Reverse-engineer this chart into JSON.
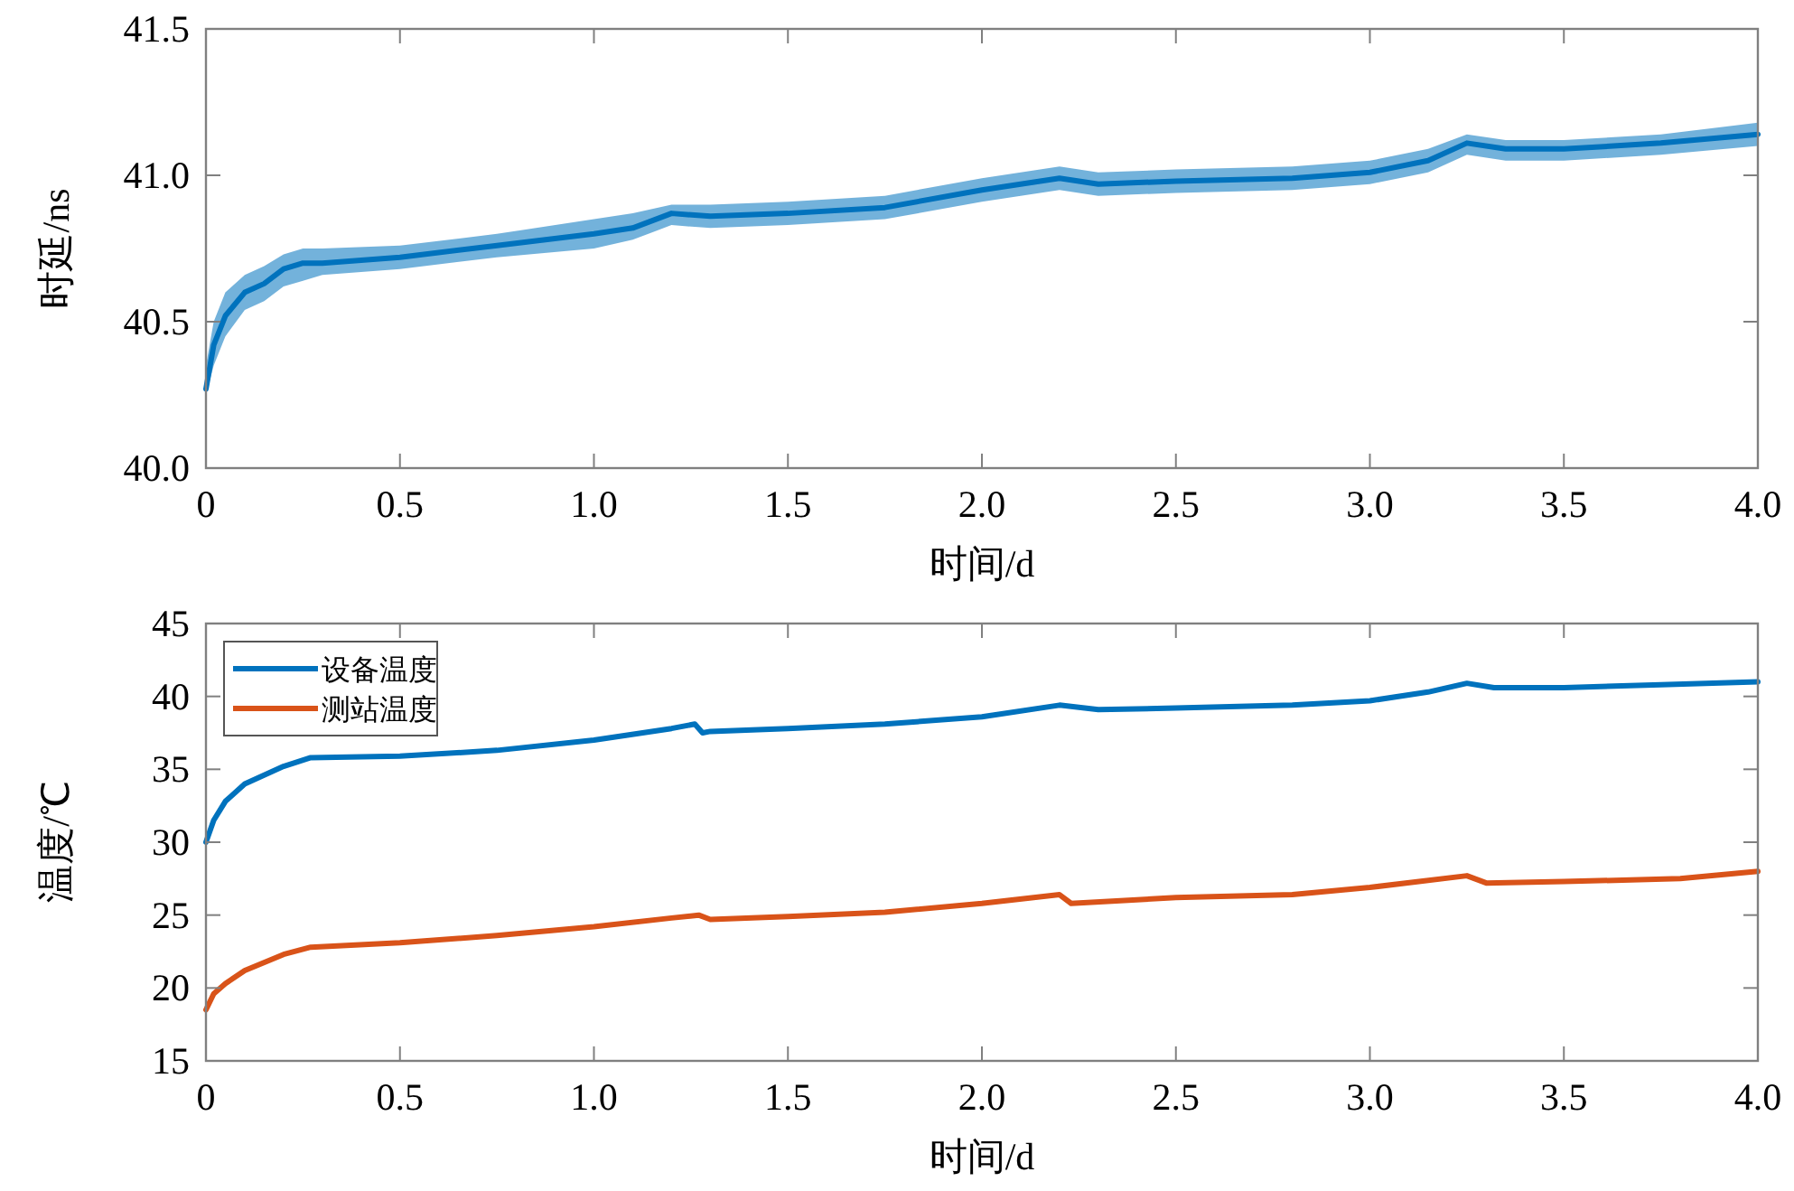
{
  "chart_data": [
    {
      "type": "line",
      "xlabel": "时间/d",
      "ylabel": "时延/ns",
      "xlim": [
        0,
        4
      ],
      "ylim": [
        40,
        41.5
      ],
      "xticks": [
        0,
        0.5,
        {
          "value": 1,
          "label": "1.0"
        },
        1.5,
        {
          "value": 2,
          "label": "2.0"
        },
        2.5,
        {
          "value": 3,
          "label": "3.0"
        },
        3.5,
        {
          "value": 4,
          "label": "4.0"
        }
      ],
      "yticks": [
        {
          "value": 40,
          "label": "40.0"
        },
        40.5,
        {
          "value": 41,
          "label": "41.0"
        },
        41.5
      ],
      "series": [
        {
          "color": "#0072bd",
          "x": [
            0,
            0.02,
            0.05,
            0.1,
            0.15,
            0.2,
            0.25,
            0.3,
            0.5,
            0.75,
            1.0,
            1.1,
            1.2,
            1.3,
            1.5,
            1.75,
            2.0,
            2.2,
            2.3,
            2.5,
            2.8,
            3.0,
            3.15,
            3.25,
            3.35,
            3.5,
            3.75,
            4.0
          ],
          "values": [
            40.27,
            40.42,
            40.52,
            40.6,
            40.63,
            40.68,
            40.7,
            40.7,
            40.72,
            40.76,
            40.8,
            40.82,
            40.87,
            40.86,
            40.87,
            40.89,
            40.95,
            40.99,
            40.97,
            40.98,
            40.99,
            41.01,
            41.05,
            41.11,
            41.09,
            41.09,
            41.11,
            41.14
          ],
          "lower": [
            40.25,
            40.35,
            40.45,
            40.54,
            40.57,
            40.62,
            40.64,
            40.66,
            40.68,
            40.72,
            40.75,
            40.78,
            40.83,
            40.82,
            40.83,
            40.85,
            40.91,
            40.95,
            40.93,
            40.94,
            40.95,
            40.97,
            41.01,
            41.07,
            41.05,
            41.05,
            41.07,
            41.1
          ],
          "upper": [
            40.35,
            40.5,
            40.6,
            40.66,
            40.69,
            40.73,
            40.75,
            40.75,
            40.76,
            40.8,
            40.85,
            40.87,
            40.9,
            40.9,
            40.91,
            40.93,
            40.99,
            41.03,
            41.01,
            41.02,
            41.03,
            41.05,
            41.09,
            41.14,
            41.12,
            41.12,
            41.14,
            41.18
          ]
        }
      ]
    },
    {
      "type": "line",
      "xlabel": "时间/d",
      "ylabel": "温度/℃",
      "xlim": [
        0,
        4
      ],
      "ylim": [
        15,
        45
      ],
      "legend": "top left",
      "xticks": [
        0,
        0.5,
        {
          "value": 1,
          "label": "1.0"
        },
        1.5,
        {
          "value": 2,
          "label": "2.0"
        },
        2.5,
        {
          "value": 3,
          "label": "3.0"
        },
        3.5,
        {
          "value": 4,
          "label": "4.0"
        }
      ],
      "yticks": [
        15,
        20,
        25,
        30,
        35,
        40,
        45
      ],
      "series": [
        {
          "name": "设备温度",
          "color": "#0072bd",
          "x": [
            0,
            0.02,
            0.05,
            0.1,
            0.2,
            0.27,
            0.5,
            0.75,
            1.0,
            1.2,
            1.26,
            1.28,
            1.3,
            1.5,
            1.75,
            2.0,
            2.2,
            2.3,
            2.5,
            2.8,
            3.0,
            3.15,
            3.25,
            3.32,
            3.5,
            3.75,
            4.0
          ],
          "values": [
            30,
            31.5,
            32.8,
            34,
            35.2,
            35.8,
            35.9,
            36.3,
            37,
            37.8,
            38.1,
            37.5,
            37.6,
            37.8,
            38.1,
            38.6,
            39.4,
            39.1,
            39.2,
            39.4,
            39.7,
            40.3,
            40.9,
            40.6,
            40.6,
            40.8,
            41
          ]
        },
        {
          "name": "测站温度",
          "color": "#d95319",
          "x": [
            0,
            0.02,
            0.05,
            0.1,
            0.2,
            0.27,
            0.5,
            0.75,
            1.0,
            1.2,
            1.27,
            1.3,
            1.5,
            1.75,
            2.0,
            2.2,
            2.23,
            2.5,
            2.8,
            3.0,
            3.25,
            3.3,
            3.5,
            3.8,
            4.0
          ],
          "values": [
            18.5,
            19.6,
            20.3,
            21.2,
            22.3,
            22.8,
            23.1,
            23.6,
            24.2,
            24.8,
            25,
            24.7,
            24.9,
            25.2,
            25.8,
            26.4,
            25.8,
            26.2,
            26.4,
            26.9,
            27.7,
            27.2,
            27.3,
            27.5,
            28
          ]
        }
      ]
    }
  ]
}
